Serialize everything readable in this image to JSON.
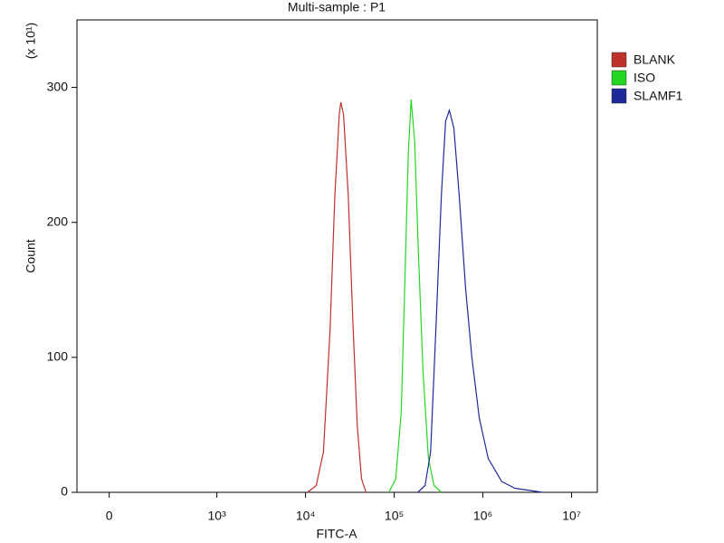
{
  "chart_data": {
    "type": "line",
    "title": "Multi-sample : P1",
    "x_label": "FITC-A",
    "y_label": "Count",
    "y_multiplier": "(x 10¹)",
    "xscale": "biexponential",
    "xlim": [
      -300,
      19500000
    ],
    "xticks": [
      0,
      {
        "value": 1000,
        "label": "10³"
      },
      {
        "value": 10000,
        "label": "10⁴"
      },
      {
        "value": 100000,
        "label": "10⁵"
      },
      {
        "value": 1000000,
        "label": "10⁶"
      },
      {
        "value": 10000000,
        "label": "10⁷"
      }
    ],
    "ylim": [
      0,
      350
    ],
    "yticks": [
      0,
      100,
      200,
      300
    ],
    "legend": "right",
    "series": [
      {
        "name": "BLANK",
        "color": "#c0302a",
        "x": [
          10500,
          13200,
          15900,
          18900,
          21400,
          24000,
          25000,
          26800,
          30300,
          34000,
          38200,
          42800,
          48000
        ],
        "values": [
          0,
          5,
          30,
          120,
          220,
          280,
          289,
          280,
          220,
          130,
          50,
          10,
          0
        ]
      },
      {
        "name": "ISO",
        "color": "#22d622",
        "x": [
          87000,
          104000,
          120000,
          131000,
          144000,
          155000,
          170000,
          187000,
          211000,
          243000,
          281000,
          340000
        ],
        "values": [
          0,
          10,
          60,
          150,
          250,
          291,
          260,
          180,
          90,
          25,
          5,
          0
        ]
      },
      {
        "name": "SLAMF1",
        "color": "#1f2a9a",
        "x": [
          184000,
          223000,
          257000,
          295000,
          340000,
          380000,
          418000,
          470000,
          540000,
          640000,
          750000,
          910000,
          1150000,
          1630000,
          2300000,
          4700000
        ],
        "values": [
          0,
          5,
          30,
          120,
          220,
          275,
          283,
          270,
          220,
          150,
          100,
          55,
          25,
          8,
          3,
          0
        ]
      }
    ]
  }
}
